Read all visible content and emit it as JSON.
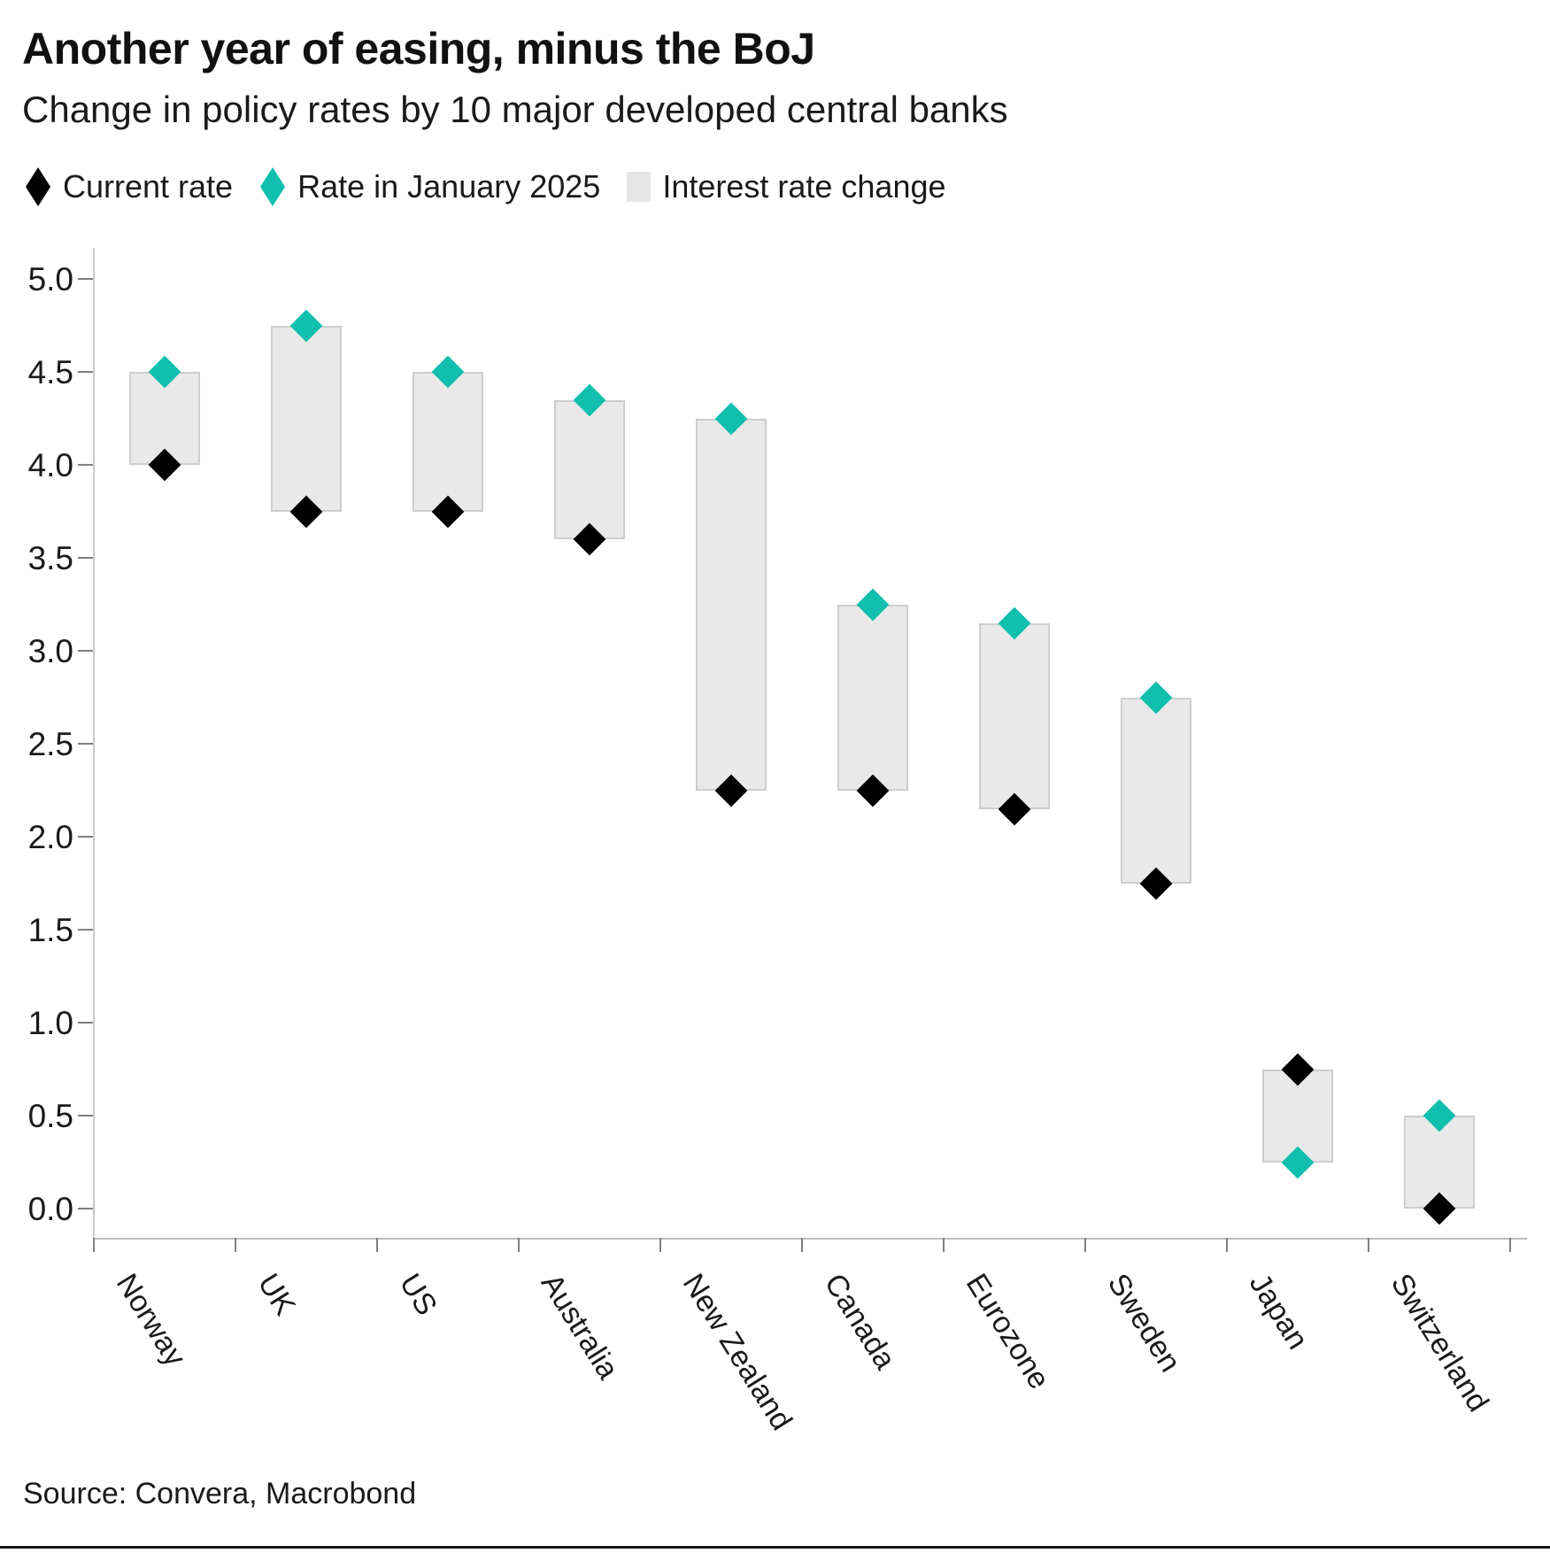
{
  "header": {
    "title": "Another year of easing, minus the BoJ",
    "subtitle": "Change in policy rates by 10 major developed central banks"
  },
  "legend": {
    "items": [
      {
        "label": "Current rate",
        "marker": "diamond",
        "color": "#000000"
      },
      {
        "label": "Rate in January 2025",
        "marker": "diamond",
        "color": "#10bfad"
      },
      {
        "label": "Interest rate change",
        "marker": "square",
        "color": "#e6e6e6"
      }
    ]
  },
  "chart_data": {
    "type": "bar",
    "subtype": "floating-range-bars-with-diamond-markers",
    "title": "Another year of easing, minus the BoJ",
    "subtitle": "Change in policy rates by 10 major developed central banks",
    "categories": [
      "Norway",
      "UK",
      "US",
      "Australia",
      "New Zealand",
      "Canada",
      "Eurozone",
      "Sweden",
      "Japan",
      "Switzerland"
    ],
    "series": [
      {
        "name": "Current rate",
        "marker": "diamond",
        "color": "#000000",
        "values": [
          4.0,
          3.75,
          3.75,
          3.6,
          2.25,
          2.25,
          2.15,
          1.75,
          0.75,
          0.0
        ]
      },
      {
        "name": "Rate in January 2025",
        "marker": "diamond",
        "color": "#10bfad",
        "values": [
          4.5,
          4.75,
          4.5,
          4.35,
          4.25,
          3.25,
          3.15,
          2.75,
          0.25,
          0.5
        ]
      },
      {
        "name": "Interest rate change",
        "marker": "range-bar",
        "color": "#e9e9e9",
        "ranges": [
          [
            4.0,
            4.5
          ],
          [
            3.75,
            4.75
          ],
          [
            3.75,
            4.5
          ],
          [
            3.6,
            4.35
          ],
          [
            2.25,
            4.25
          ],
          [
            2.25,
            3.25
          ],
          [
            2.15,
            3.15
          ],
          [
            1.75,
            2.75
          ],
          [
            0.25,
            0.75
          ],
          [
            0.0,
            0.5
          ]
        ]
      }
    ],
    "ylim": [
      0.0,
      5.0
    ],
    "ytick_labels": [
      "0.0",
      "0.5",
      "1.0",
      "1.5",
      "2.0",
      "2.5",
      "3.0",
      "3.5",
      "4.0",
      "4.5",
      "5.0"
    ],
    "grid": false,
    "legend_position": "top-left",
    "xlabel": "",
    "ylabel": ""
  },
  "footer": {
    "source": "Source: Convera, Macrobond"
  },
  "colors": {
    "current": "#000000",
    "january": "#10bfad",
    "bar_fill": "#e9e9e9",
    "bar_border": "#cbced0",
    "axis": "#c9c9c9",
    "tick": "#7f7f7f",
    "text": "#1a1a1a"
  }
}
